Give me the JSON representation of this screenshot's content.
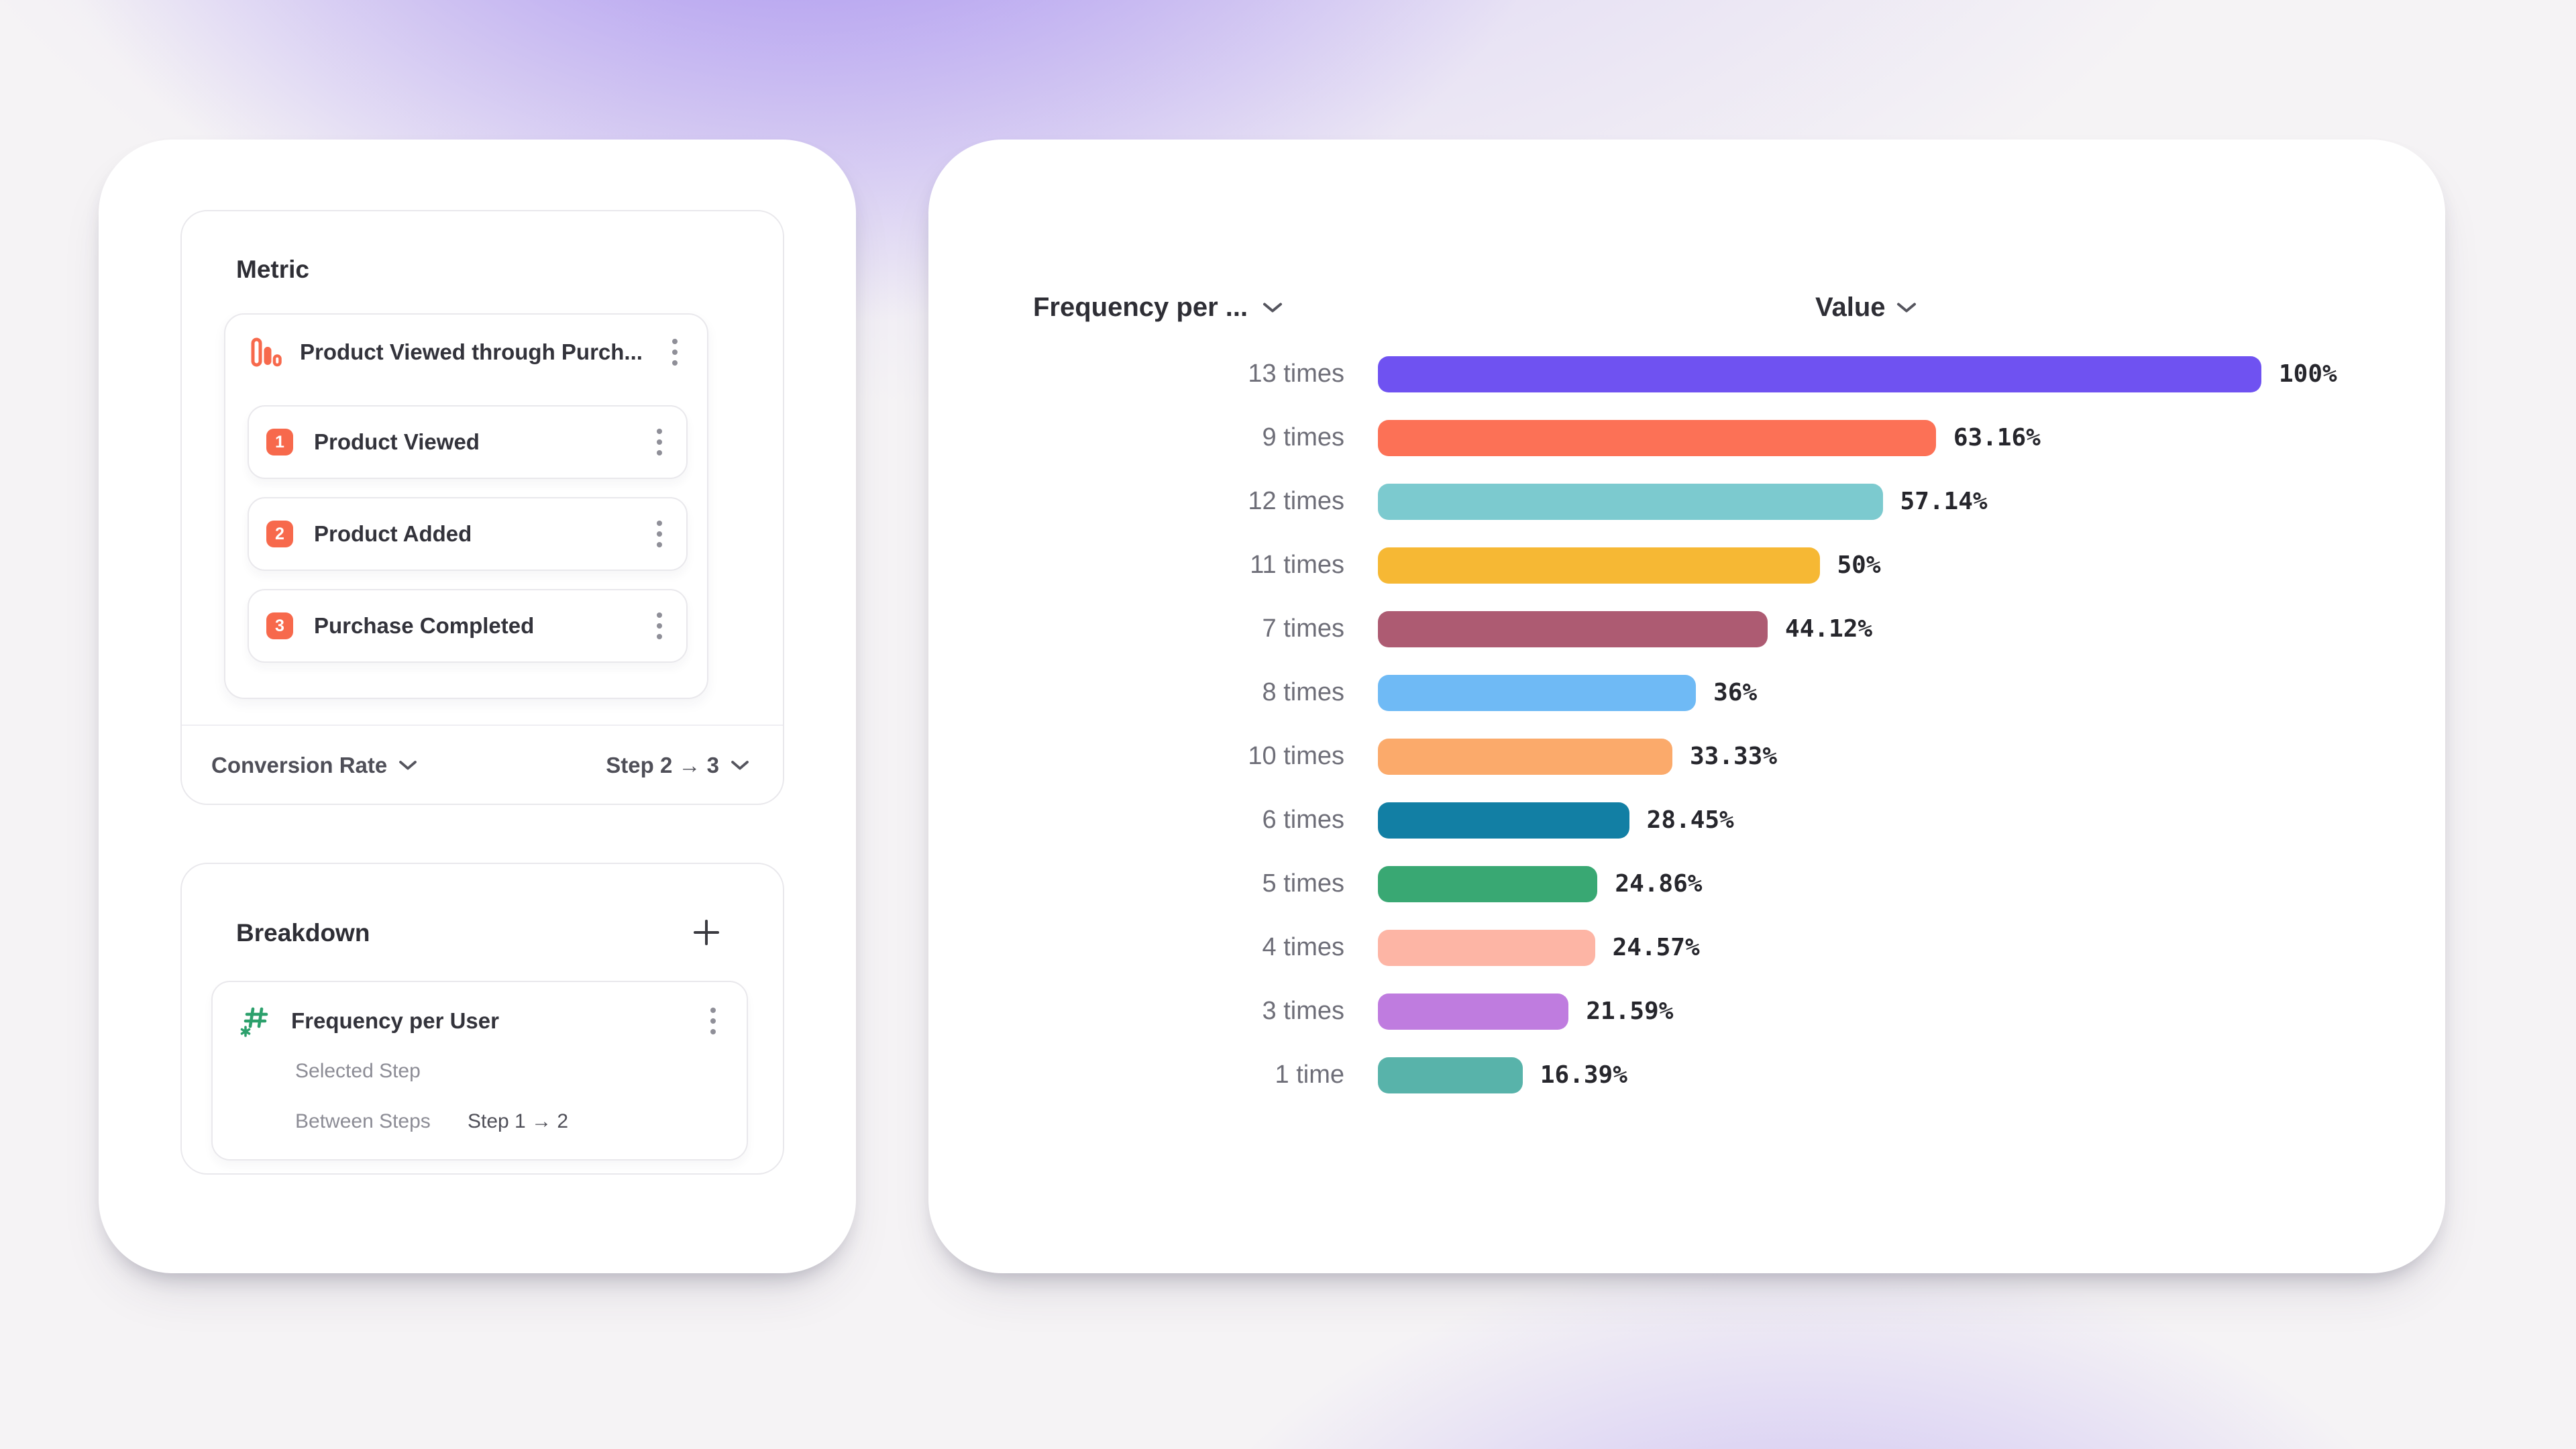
{
  "colors": {
    "accent_orange": "#f7694c",
    "accent_green": "#2ca06c",
    "border": "#e9e8ec",
    "text_dark": "#2e2e35",
    "text_label": "#33333b",
    "text_mid": "#4f4f58",
    "text_gray": "#6e6e78",
    "text_light": "#8c8c95",
    "value_text": "#26262c",
    "kebab_dot": "#8f8f98"
  },
  "metric_panel": {
    "title": "Metric",
    "funnel_event": {
      "label": "Product Viewed through Purch...",
      "icon": "funnel-bars-icon"
    },
    "steps": [
      {
        "number": "1",
        "label": "Product Viewed"
      },
      {
        "number": "2",
        "label": "Product Added"
      },
      {
        "number": "3",
        "label": "Purchase Completed"
      }
    ],
    "footer": {
      "measure_label": "Conversion Rate",
      "range_label": "Step 2 → 3"
    }
  },
  "breakdown_panel": {
    "title": "Breakdown",
    "item": {
      "label": "Frequency per User",
      "icon": "hash-icon",
      "rows": [
        {
          "label": "Selected Step",
          "value": ""
        },
        {
          "label": "Between Steps",
          "value": "Step 1 → 2"
        }
      ]
    }
  },
  "chart": {
    "category_header": "Frequency per ...",
    "value_header": "Value"
  },
  "chart_data": {
    "type": "bar",
    "orientation": "horizontal",
    "title": "",
    "xlabel": "Value",
    "ylabel": "Frequency per User",
    "xlim": [
      0,
      100
    ],
    "grid": false,
    "legend": "none",
    "categories": [
      "13 times",
      "9 times",
      "12 times",
      "11 times",
      "7 times",
      "8 times",
      "10 times",
      "6 times",
      "5 times",
      "4 times",
      "3 times",
      "1 time"
    ],
    "values": [
      100,
      63.16,
      57.14,
      50,
      44.12,
      36,
      33.33,
      28.45,
      24.86,
      24.57,
      21.59,
      16.39
    ],
    "value_labels": [
      "100%",
      "63.16%",
      "57.14%",
      "50%",
      "44.12%",
      "36%",
      "33.33%",
      "28.45%",
      "24.86%",
      "24.57%",
      "21.59%",
      "16.39%"
    ],
    "bar_colors": [
      "#6f52f1",
      "#fc7156",
      "#7ccacf",
      "#f6b834",
      "#ad5b72",
      "#6fbaf5",
      "#fbaa6b",
      "#127fa4",
      "#39a873",
      "#fdb5a5",
      "#bf7cdf",
      "#58b3aa"
    ]
  }
}
